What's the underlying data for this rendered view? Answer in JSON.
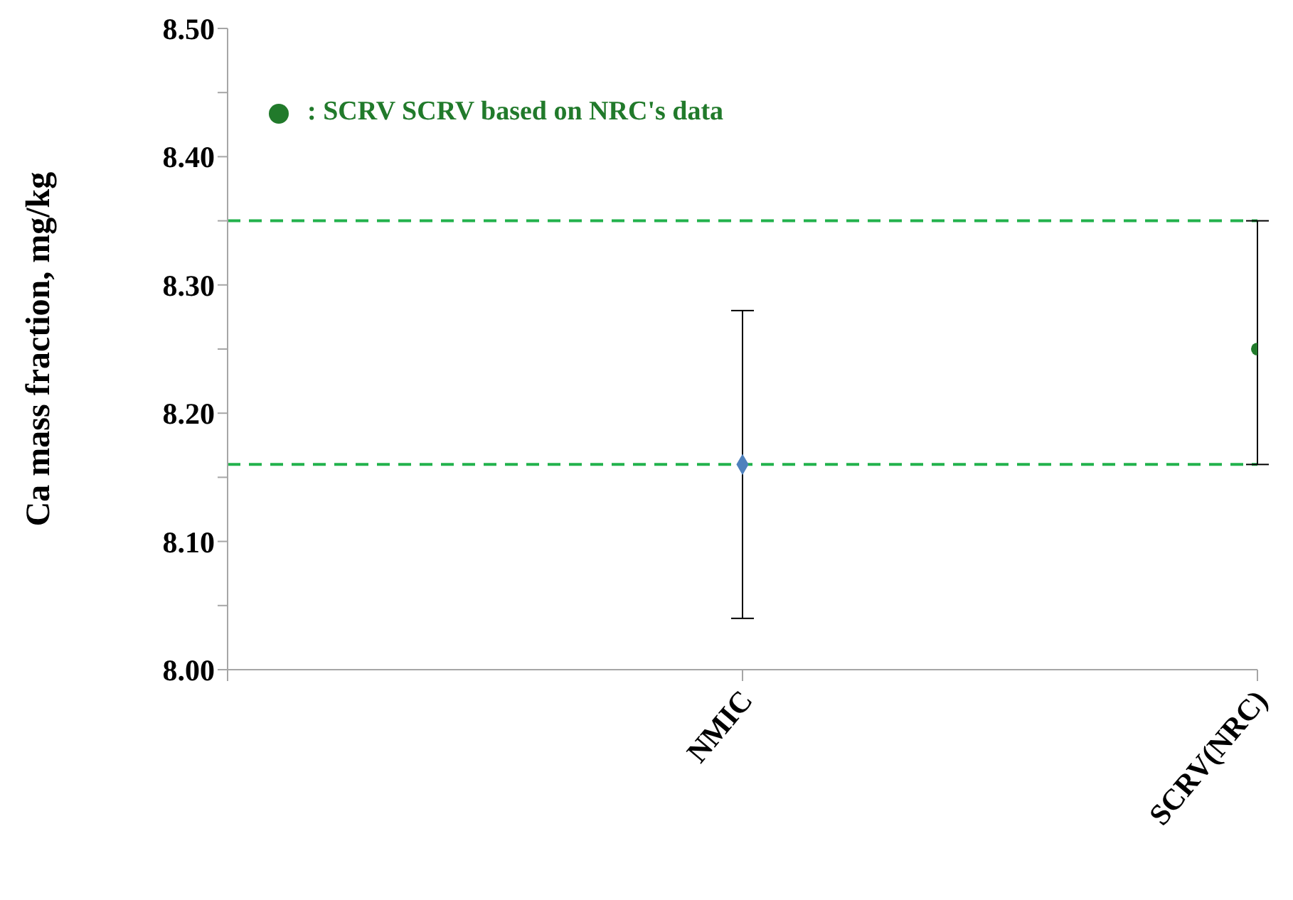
{
  "chart_data": {
    "type": "scatter",
    "ylabel": "Ca mass fraction, mg/kg",
    "categories": [
      null,
      "NMIC",
      "SCRV(NRC)"
    ],
    "series": [
      {
        "color": "#4f81bd",
        "marker": "diamond",
        "values": [
          null,
          8.16,
          null
        ],
        "errors": [
          null,
          0.12,
          null
        ]
      },
      {
        "name": ": SCRV SCRV based on NRC's data",
        "color": "#217a2b",
        "marker": "circle",
        "values": [
          null,
          null,
          8.25
        ],
        "errors": [
          null,
          null,
          [
            8.16,
            8.35
          ]
        ]
      }
    ],
    "ylim": [
      8.0,
      8.5
    ],
    "yticks": [
      {
        "value": 8.0,
        "label": "8.00"
      },
      {
        "value": 8.05,
        "label": null
      },
      {
        "value": 8.1,
        "label": "8.10"
      },
      {
        "value": 8.15,
        "label": null
      },
      {
        "value": 8.2,
        "label": "8.20"
      },
      {
        "value": 8.25,
        "label": null
      },
      {
        "value": 8.3,
        "label": "8.30"
      },
      {
        "value": 8.35,
        "label": null
      },
      {
        "value": 8.4,
        "label": "8.40"
      },
      {
        "value": 8.45,
        "label": null
      },
      {
        "value": 8.5,
        "label": "8.50"
      }
    ],
    "ref_lines": [
      {
        "axis": "y",
        "value": 8.35,
        "color": "#22b24c",
        "line_style": "dashed"
      },
      {
        "axis": "y",
        "value": 8.16,
        "color": "#22b24c",
        "line_style": "dashed"
      }
    ],
    "grid": false,
    "legend": "top left"
  }
}
